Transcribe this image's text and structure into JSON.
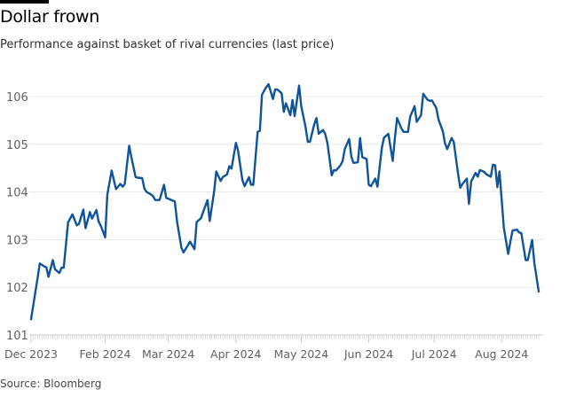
{
  "title": "Dollar frown",
  "subtitle": "Performance against basket of rival currencies (last price)",
  "source": "Source: Bloomberg",
  "colors": {
    "line": "#0f5499",
    "grid": "#e9e9e9",
    "axis": "#cccccc",
    "text": "#66605c"
  },
  "chart_data": {
    "type": "line",
    "title": "Dollar frown",
    "xlabel": "",
    "ylabel": "",
    "ylim": [
      101,
      106.3
    ],
    "xlim": [
      "2023-12-29",
      "2024-08-18"
    ],
    "grid": true,
    "yticks": [
      {
        "value": 101,
        "label": "101"
      },
      {
        "value": 102,
        "label": "102"
      },
      {
        "value": 103,
        "label": "103"
      },
      {
        "value": 104,
        "label": "104"
      },
      {
        "value": 105,
        "label": "105"
      },
      {
        "value": 106,
        "label": "106"
      }
    ],
    "xticks": [
      {
        "date": "2023-12-29",
        "label": "Dec 2023"
      },
      {
        "date": "2024-02-01",
        "label": "Feb 2024"
      },
      {
        "date": "2024-03-01",
        "label": "Mar 2024"
      },
      {
        "date": "2024-04-01",
        "label": "Apr 2024"
      },
      {
        "date": "2024-05-01",
        "label": "May 2024"
      },
      {
        "date": "2024-06-01",
        "label": "Jun 2024"
      },
      {
        "date": "2024-07-01",
        "label": "Jul 2024"
      },
      {
        "date": "2024-08-01",
        "label": "Aug 2024"
      }
    ],
    "series": [
      {
        "points": [
          [
            "2023-12-29",
            101.33
          ],
          [
            "2024-01-01",
            102.2
          ],
          [
            "2024-01-02",
            102.5
          ],
          [
            "2024-01-04",
            102.44
          ],
          [
            "2024-01-05",
            102.42
          ],
          [
            "2024-01-06",
            102.22
          ],
          [
            "2024-01-08",
            102.57
          ],
          [
            "2024-01-09",
            102.38
          ],
          [
            "2024-01-11",
            102.3
          ],
          [
            "2024-01-12",
            102.41
          ],
          [
            "2024-01-13",
            102.41
          ],
          [
            "2024-01-15",
            103.36
          ],
          [
            "2024-01-17",
            103.53
          ],
          [
            "2024-01-19",
            103.3
          ],
          [
            "2024-01-20",
            103.33
          ],
          [
            "2024-01-22",
            103.63
          ],
          [
            "2024-01-23",
            103.24
          ],
          [
            "2024-01-25",
            103.58
          ],
          [
            "2024-01-26",
            103.44
          ],
          [
            "2024-01-28",
            103.62
          ],
          [
            "2024-01-29",
            103.38
          ],
          [
            "2024-01-30",
            103.29
          ],
          [
            "2024-02-01",
            103.05
          ],
          [
            "2024-02-02",
            103.94
          ],
          [
            "2024-02-04",
            104.45
          ],
          [
            "2024-02-05",
            104.25
          ],
          [
            "2024-02-06",
            104.06
          ],
          [
            "2024-02-08",
            104.17
          ],
          [
            "2024-02-09",
            104.11
          ],
          [
            "2024-02-10",
            104.17
          ],
          [
            "2024-02-12",
            104.97
          ],
          [
            "2024-02-13",
            104.74
          ],
          [
            "2024-02-15",
            104.31
          ],
          [
            "2024-02-16",
            104.3
          ],
          [
            "2024-02-18",
            104.29
          ],
          [
            "2024-02-19",
            104.07
          ],
          [
            "2024-02-20",
            104.0
          ],
          [
            "2024-02-22",
            103.95
          ],
          [
            "2024-02-23",
            103.91
          ],
          [
            "2024-02-24",
            103.83
          ],
          [
            "2024-02-26",
            103.83
          ],
          [
            "2024-02-28",
            104.15
          ],
          [
            "2024-02-29",
            103.88
          ],
          [
            "2024-03-04",
            103.8
          ],
          [
            "2024-03-05",
            103.38
          ],
          [
            "2024-03-07",
            102.83
          ],
          [
            "2024-03-08",
            102.73
          ],
          [
            "2024-03-11",
            102.96
          ],
          [
            "2024-03-13",
            102.8
          ],
          [
            "2024-03-14",
            103.37
          ],
          [
            "2024-03-16",
            103.45
          ],
          [
            "2024-03-17",
            103.58
          ],
          [
            "2024-03-19",
            103.83
          ],
          [
            "2024-03-20",
            103.39
          ],
          [
            "2024-03-22",
            104.0
          ],
          [
            "2024-03-23",
            104.43
          ],
          [
            "2024-03-25",
            104.23
          ],
          [
            "2024-03-26",
            104.31
          ],
          [
            "2024-03-28",
            104.37
          ],
          [
            "2024-03-29",
            104.54
          ],
          [
            "2024-03-30",
            104.49
          ],
          [
            "2024-04-01",
            105.03
          ],
          [
            "2024-04-02",
            104.87
          ],
          [
            "2024-04-04",
            104.25
          ],
          [
            "2024-04-05",
            104.12
          ],
          [
            "2024-04-07",
            104.31
          ],
          [
            "2024-04-08",
            104.15
          ],
          [
            "2024-04-09",
            104.15
          ],
          [
            "2024-04-11",
            105.26
          ],
          [
            "2024-04-12",
            105.28
          ],
          [
            "2024-04-13",
            106.04
          ],
          [
            "2024-04-15",
            106.2
          ],
          [
            "2024-04-16",
            106.26
          ],
          [
            "2024-04-18",
            105.95
          ],
          [
            "2024-04-19",
            106.15
          ],
          [
            "2024-04-20",
            106.15
          ],
          [
            "2024-04-22",
            106.07
          ],
          [
            "2024-04-23",
            105.68
          ],
          [
            "2024-04-24",
            105.86
          ],
          [
            "2024-04-26",
            105.61
          ],
          [
            "2024-04-27",
            105.93
          ],
          [
            "2024-04-28",
            105.59
          ],
          [
            "2024-04-30",
            106.23
          ],
          [
            "2024-05-01",
            105.8
          ],
          [
            "2024-05-03",
            105.36
          ],
          [
            "2024-05-04",
            105.05
          ],
          [
            "2024-05-05",
            105.05
          ],
          [
            "2024-05-07",
            105.42
          ],
          [
            "2024-05-08",
            105.55
          ],
          [
            "2024-05-09",
            105.22
          ],
          [
            "2024-05-11",
            105.3
          ],
          [
            "2024-05-12",
            105.22
          ],
          [
            "2024-05-13",
            105.03
          ],
          [
            "2024-05-15",
            104.35
          ],
          [
            "2024-05-16",
            104.46
          ],
          [
            "2024-05-17",
            104.45
          ],
          [
            "2024-05-19",
            104.56
          ],
          [
            "2024-05-20",
            104.65
          ],
          [
            "2024-05-21",
            104.9
          ],
          [
            "2024-05-23",
            105.11
          ],
          [
            "2024-05-24",
            104.74
          ],
          [
            "2024-05-25",
            104.61
          ],
          [
            "2024-05-27",
            104.62
          ],
          [
            "2024-05-28",
            105.13
          ],
          [
            "2024-05-29",
            104.73
          ],
          [
            "2024-05-31",
            104.69
          ],
          [
            "2024-06-01",
            104.15
          ],
          [
            "2024-06-02",
            104.12
          ],
          [
            "2024-06-04",
            104.28
          ],
          [
            "2024-06-05",
            104.11
          ],
          [
            "2024-06-07",
            104.92
          ],
          [
            "2024-06-08",
            105.14
          ],
          [
            "2024-06-10",
            105.22
          ],
          [
            "2024-06-12",
            104.65
          ],
          [
            "2024-06-13",
            105.14
          ],
          [
            "2024-06-14",
            105.55
          ],
          [
            "2024-06-16",
            105.33
          ],
          [
            "2024-06-17",
            105.26
          ],
          [
            "2024-06-19",
            105.26
          ],
          [
            "2024-06-20",
            105.58
          ],
          [
            "2024-06-22",
            105.8
          ],
          [
            "2024-06-23",
            105.47
          ],
          [
            "2024-06-25",
            105.61
          ],
          [
            "2024-06-26",
            106.06
          ],
          [
            "2024-06-28",
            105.93
          ],
          [
            "2024-06-29",
            105.91
          ],
          [
            "2024-06-30",
            105.92
          ],
          [
            "2024-07-02",
            105.76
          ],
          [
            "2024-07-03",
            105.52
          ],
          [
            "2024-07-05",
            105.27
          ],
          [
            "2024-07-06",
            105.02
          ],
          [
            "2024-07-07",
            104.9
          ],
          [
            "2024-07-09",
            105.13
          ],
          [
            "2024-07-10",
            105.05
          ],
          [
            "2024-07-11",
            104.71
          ],
          [
            "2024-07-12",
            104.37
          ],
          [
            "2024-07-13",
            104.09
          ],
          [
            "2024-07-14",
            104.17
          ],
          [
            "2024-07-16",
            104.28
          ],
          [
            "2024-07-17",
            103.75
          ],
          [
            "2024-07-18",
            104.22
          ],
          [
            "2024-07-20",
            104.4
          ],
          [
            "2024-07-21",
            104.32
          ],
          [
            "2024-07-22",
            104.46
          ],
          [
            "2024-07-24",
            104.42
          ],
          [
            "2024-07-25",
            104.37
          ],
          [
            "2024-07-27",
            104.32
          ],
          [
            "2024-07-28",
            104.57
          ],
          [
            "2024-07-29",
            104.56
          ],
          [
            "2024-07-30",
            104.1
          ],
          [
            "2024-07-31",
            104.43
          ],
          [
            "2024-08-02",
            103.25
          ],
          [
            "2024-08-04",
            102.7
          ],
          [
            "2024-08-05",
            102.96
          ],
          [
            "2024-08-06",
            103.19
          ],
          [
            "2024-08-08",
            103.21
          ],
          [
            "2024-08-09",
            103.15
          ],
          [
            "2024-08-10",
            103.14
          ],
          [
            "2024-08-12",
            102.57
          ],
          [
            "2024-08-13",
            102.57
          ],
          [
            "2024-08-15",
            102.99
          ],
          [
            "2024-08-16",
            102.51
          ],
          [
            "2024-08-18",
            101.91
          ]
        ]
      }
    ]
  }
}
